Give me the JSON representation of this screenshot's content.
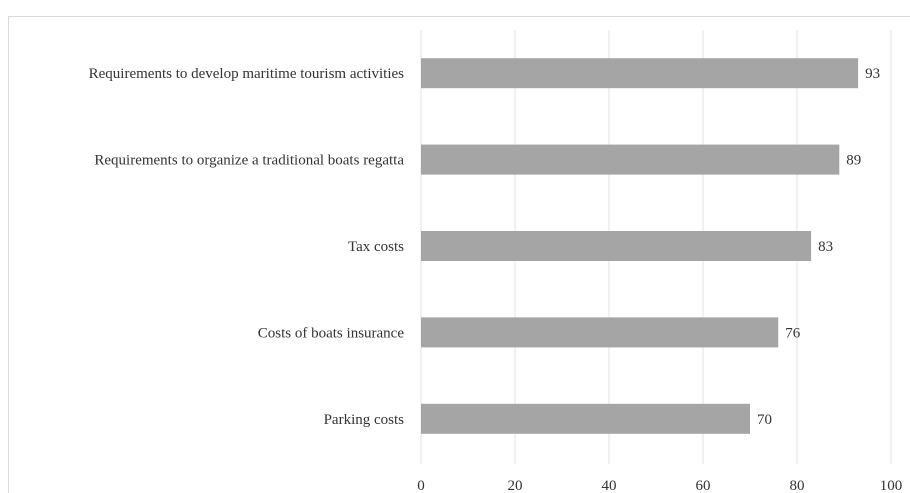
{
  "chart_data": {
    "type": "bar",
    "orientation": "horizontal",
    "categories": [
      "Requirements to develop maritime tourism activities",
      "Requirements to organize a traditional boats regatta",
      "Tax costs",
      "Costs of boats insurance",
      "Parking costs"
    ],
    "values": [
      93,
      89,
      83,
      76,
      70
    ],
    "xlim": [
      0,
      100
    ],
    "xticks": [
      0,
      20,
      40,
      60,
      80,
      100
    ],
    "grid": true,
    "bar_color": "#a5a5a5",
    "grid_color": "#e3e3e3",
    "title": "",
    "xlabel": "",
    "ylabel": ""
  }
}
